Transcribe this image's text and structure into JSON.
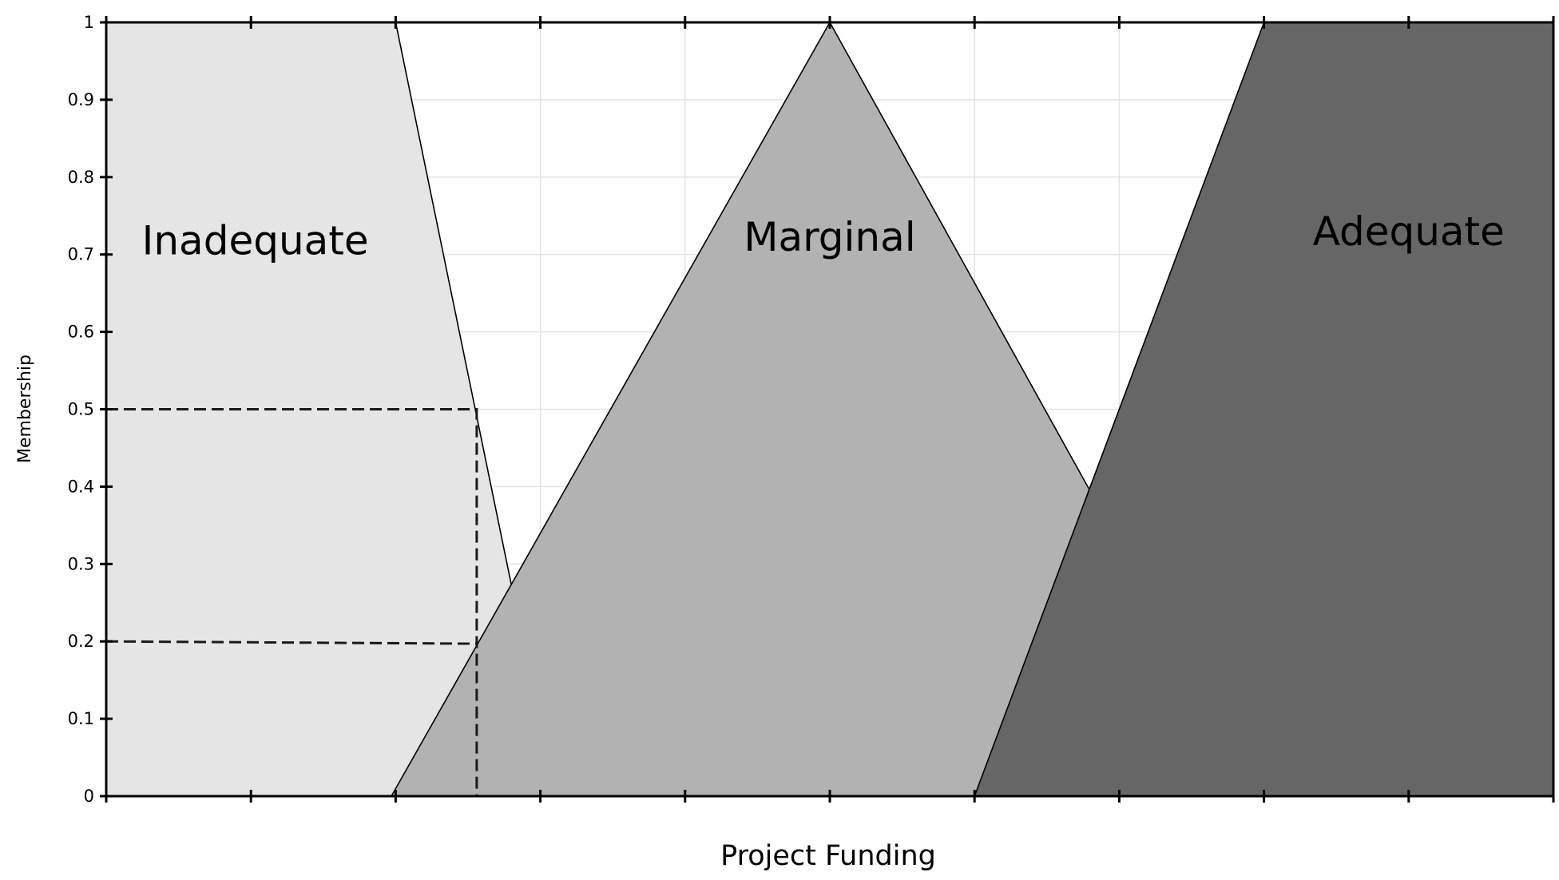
{
  "chart_data": {
    "type": "area",
    "title": "",
    "xlabel": "Project Funding",
    "ylabel": "Membership",
    "xlim": [
      0,
      10
    ],
    "ylim": [
      0,
      1
    ],
    "x_ticks": [
      0,
      1,
      2,
      3,
      4,
      5,
      6,
      7,
      8,
      9,
      10
    ],
    "y_ticks": [
      0,
      0.1,
      0.2,
      0.3,
      0.4,
      0.5,
      0.6,
      0.7,
      0.8,
      0.9,
      1
    ],
    "y_tick_labels": [
      "0",
      "0.1",
      "0.2",
      "0.3",
      "0.4",
      "0.5",
      "0.6",
      "0.7",
      "0.8",
      "0.9",
      "1"
    ],
    "grid": true,
    "series": [
      {
        "name": "Inadequate",
        "color": "#e5e5e5",
        "points": [
          [
            0,
            0
          ],
          [
            0,
            1
          ],
          [
            2,
            1
          ],
          [
            3.1,
            0
          ]
        ]
      },
      {
        "name": "Marginal",
        "color": "#b2b2b2",
        "points": [
          [
            1.97,
            0
          ],
          [
            5,
            1
          ],
          [
            7.97,
            0
          ]
        ]
      },
      {
        "name": "Adequate",
        "color": "#666666",
        "points": [
          [
            6,
            0
          ],
          [
            8,
            1
          ],
          [
            10,
            1
          ],
          [
            10,
            0
          ]
        ]
      }
    ],
    "reference_lines": [
      {
        "points": [
          [
            0,
            0.5
          ],
          [
            2.56,
            0.5
          ],
          [
            2.56,
            0
          ]
        ]
      },
      {
        "points": [
          [
            0,
            0.2
          ],
          [
            2.56,
            0.197
          ]
        ]
      }
    ]
  }
}
